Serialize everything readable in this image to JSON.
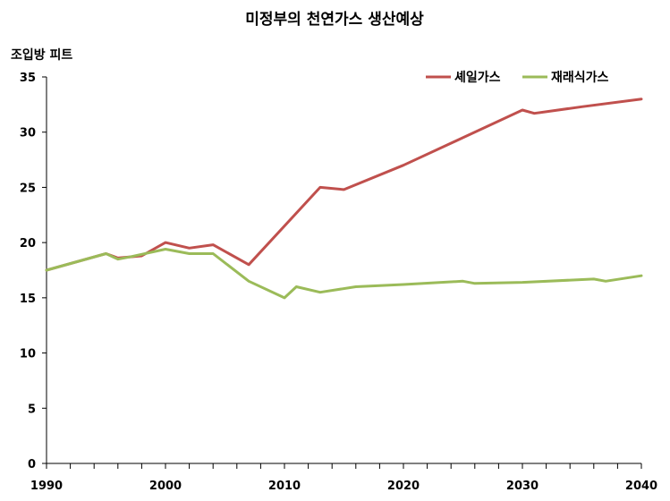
{
  "chart_data": {
    "type": "line",
    "title": "미정부의 천연가스 생산예상",
    "ylabel": "조입방 피트",
    "xlabel": "",
    "xlim": [
      1990,
      2040
    ],
    "ylim": [
      0,
      35
    ],
    "x_ticks": [
      "1990",
      "2000",
      "2010",
      "2020",
      "2030",
      "2040"
    ],
    "y_ticks": [
      "0",
      "5",
      "10",
      "15",
      "20",
      "25",
      "30",
      "35"
    ],
    "grid": false,
    "legend_position": "top-right",
    "series": [
      {
        "name": "셰일가스",
        "color": "#c0504d",
        "points": [
          [
            1990,
            17.5
          ],
          [
            1995,
            19.0
          ],
          [
            1996,
            18.6
          ],
          [
            1998,
            18.8
          ],
          [
            2000,
            20.0
          ],
          [
            2002,
            19.5
          ],
          [
            2004,
            19.8
          ],
          [
            2007,
            18.0
          ],
          [
            2013,
            25.0
          ],
          [
            2015,
            24.8
          ],
          [
            2020,
            27.0
          ],
          [
            2025,
            29.5
          ],
          [
            2030,
            32.0
          ],
          [
            2031,
            31.7
          ],
          [
            2035,
            32.3
          ],
          [
            2040,
            33.0
          ]
        ]
      },
      {
        "name": "재래식가스",
        "color": "#9bbb59",
        "points": [
          [
            1990,
            17.5
          ],
          [
            1995,
            19.0
          ],
          [
            1996,
            18.5
          ],
          [
            1997,
            18.7
          ],
          [
            2000,
            19.4
          ],
          [
            2002,
            19.0
          ],
          [
            2004,
            19.0
          ],
          [
            2007,
            16.5
          ],
          [
            2010,
            15.0
          ],
          [
            2011,
            16.0
          ],
          [
            2013,
            15.5
          ],
          [
            2016,
            16.0
          ],
          [
            2020,
            16.2
          ],
          [
            2025,
            16.5
          ],
          [
            2026,
            16.3
          ],
          [
            2030,
            16.4
          ],
          [
            2036,
            16.7
          ],
          [
            2037,
            16.5
          ],
          [
            2040,
            17.0
          ]
        ]
      }
    ]
  }
}
